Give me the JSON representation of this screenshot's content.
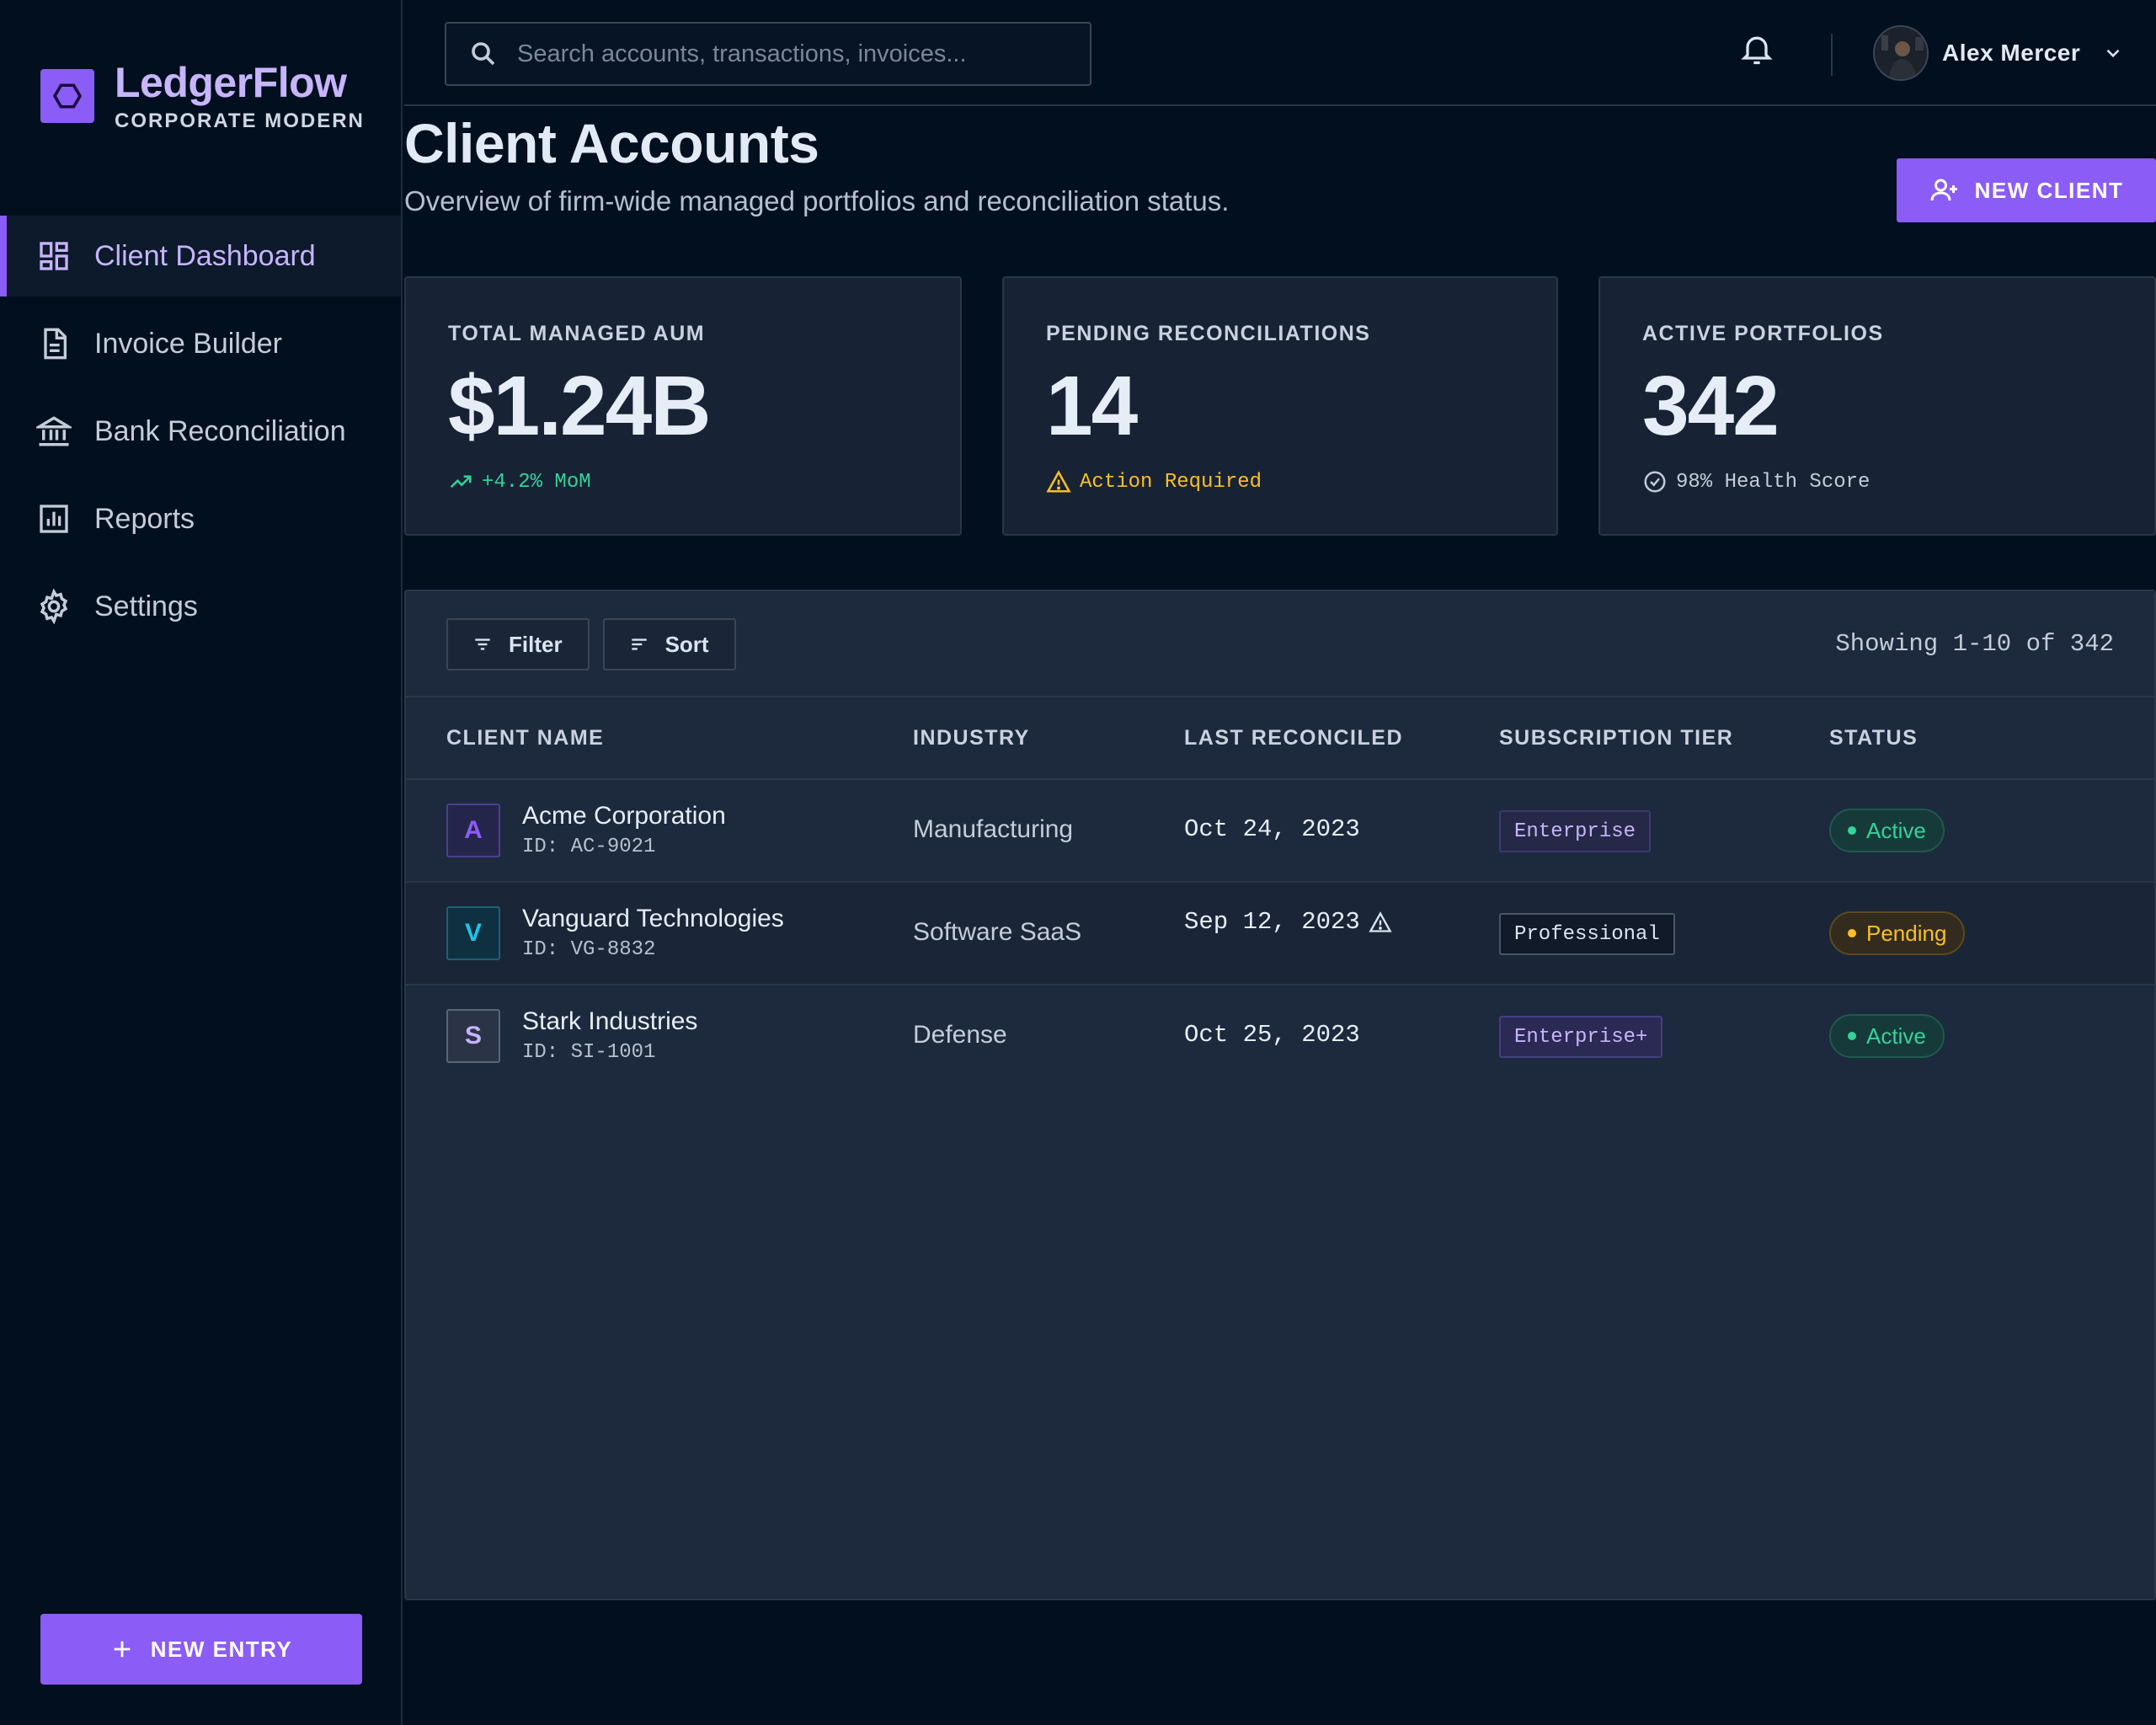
{
  "brand": {
    "name": "LedgerFlow",
    "subtitle": "CORPORATE MODERN"
  },
  "sidebar": {
    "items": [
      {
        "label": "Client Dashboard",
        "icon": "dashboard-icon",
        "active": true
      },
      {
        "label": "Invoice Builder",
        "icon": "document-icon",
        "active": false
      },
      {
        "label": "Bank Reconciliation",
        "icon": "bank-icon",
        "active": false
      },
      {
        "label": "Reports",
        "icon": "bar-chart-icon",
        "active": false
      },
      {
        "label": "Settings",
        "icon": "gear-icon",
        "active": false
      }
    ],
    "new_entry_label": "NEW ENTRY"
  },
  "topbar": {
    "search_placeholder": "Search accounts, transactions, invoices...",
    "user_name": "Alex Mercer"
  },
  "page": {
    "title": "Client Accounts",
    "subtitle": "Overview of firm-wide managed portfolios and reconciliation status.",
    "new_client_label": "NEW CLIENT"
  },
  "stats": [
    {
      "label": "TOTAL MANAGED AUM",
      "value": "$1.24B",
      "foot": "+4.2% MoM",
      "foot_color": "#34d399",
      "icon": "trending-up-icon"
    },
    {
      "label": "PENDING RECONCILIATIONS",
      "value": "14",
      "foot": "Action Required",
      "foot_color": "#fbbf24",
      "icon": "warning-icon"
    },
    {
      "label": "ACTIVE PORTFOLIOS",
      "value": "342",
      "foot": "98% Health Score",
      "foot_color": "#c4ccd8",
      "icon": "check-circle-icon"
    }
  ],
  "table": {
    "filter_label": "Filter",
    "sort_label": "Sort",
    "showing": "Showing 1-10 of 342",
    "columns": [
      "CLIENT NAME",
      "INDUSTRY",
      "LAST RECONCILED",
      "SUBSCRIPTION TIER",
      "STATUS"
    ],
    "rows": [
      {
        "initial": "A",
        "name": "Acme Corporation",
        "id": "ID: AC-9021",
        "industry": "Manufacturing",
        "date": "Oct 24, 2023",
        "warning": false,
        "tier": "Enterprise",
        "status": "Active"
      },
      {
        "initial": "V",
        "name": "Vanguard Technologies",
        "id": "ID: VG-8832",
        "industry": "Software SaaS",
        "date": "Sep 12, 2023",
        "warning": true,
        "tier": "Professional",
        "status": "Pending"
      },
      {
        "initial": "S",
        "name": "Stark Industries",
        "id": "ID: SI-1001",
        "industry": "Defense",
        "date": "Oct 25, 2023",
        "warning": false,
        "tier": "Enterprise+",
        "status": "Active"
      }
    ]
  },
  "colors": {
    "accent": "#8b5cf6",
    "success": "#34d399",
    "warning": "#fbbf24",
    "background": "#020f1f",
    "panel": "#1d293d"
  }
}
